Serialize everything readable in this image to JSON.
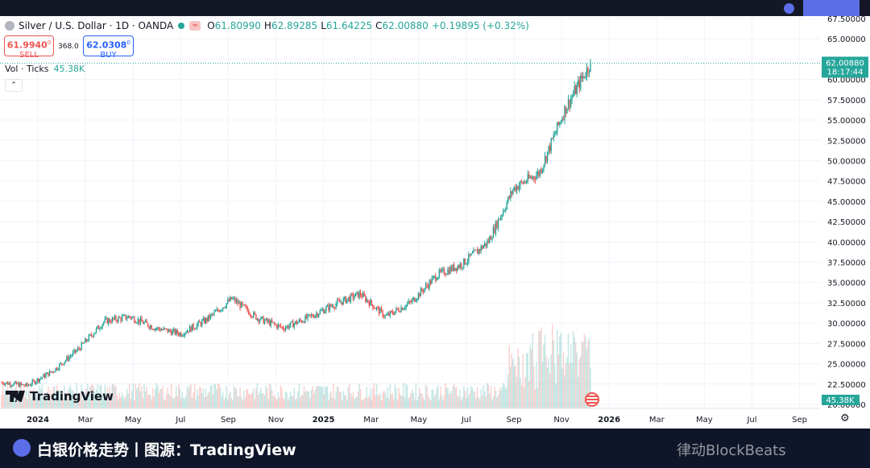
{
  "legend": {
    "symbol": "Silver / U.S. Dollar · 1D · OANDA",
    "o_label": "O",
    "o_value": "61.80990",
    "h_label": "H",
    "h_value": "62.89285",
    "l_label": "L",
    "l_value": "61.64225",
    "c_label": "C",
    "c_value": "62.00880",
    "change": "+0.19895 (+0.32%)"
  },
  "trade": {
    "sell_price": "61.9940",
    "sell_price_small": "0",
    "sell_label": "SELL",
    "spread": "368.0",
    "buy_price": "62.0308",
    "buy_price_small": "0",
    "buy_label": "BUY"
  },
  "volume": {
    "label": "Vol · Ticks",
    "value": "45.38K"
  },
  "collapse_glyph": "⌃",
  "logo_text": "TradingView",
  "price_tag": {
    "price": "62.00880",
    "countdown": "18:17:44"
  },
  "volume_tag": "45.38K",
  "footer": {
    "caption": "白银价格走势丨图源：TradingView",
    "watermark": "律动BlockBeats"
  },
  "colors": {
    "up": "#26a69a",
    "down": "#ef5350",
    "axis_text": "#131722",
    "grid": "#f0f3fa"
  },
  "chart_data": {
    "type": "candlestick",
    "title": "Silver / U.S. Dollar · 1D · OANDA",
    "ylim": [
      19.5,
      67.8
    ],
    "y_ticks": [
      "20.00000",
      "22.50000",
      "25.00000",
      "27.50000",
      "30.00000",
      "32.50000",
      "35.00000",
      "37.50000",
      "40.00000",
      "42.50000",
      "45.00000",
      "47.50000",
      "50.00000",
      "52.50000",
      "55.00000",
      "57.50000",
      "60.00000",
      "62.50000",
      "65.00000",
      "67.50000"
    ],
    "x_ticks": [
      "2024",
      "Mar",
      "May",
      "Jul",
      "Sep",
      "Nov",
      "2025",
      "Mar",
      "May",
      "Jul",
      "Sep",
      "Nov",
      "2026",
      "Mar",
      "May",
      "Jul",
      "Sep"
    ],
    "bold_x_ticks": [
      "2024",
      "2025",
      "2026"
    ],
    "current_price": 62.0088,
    "close_series": {
      "interval": "monthly",
      "start": "2024-01",
      "values": [
        22.7,
        22.3,
        24.1,
        26.8,
        30.2,
        30.8,
        29.4,
        28.7,
        30.4,
        33.0,
        30.6,
        29.4,
        30.7,
        32.3,
        33.6,
        30.8,
        32.6,
        35.9,
        37.3,
        40.0,
        46.6,
        48.5,
        56.3,
        62.0
      ]
    }
  }
}
